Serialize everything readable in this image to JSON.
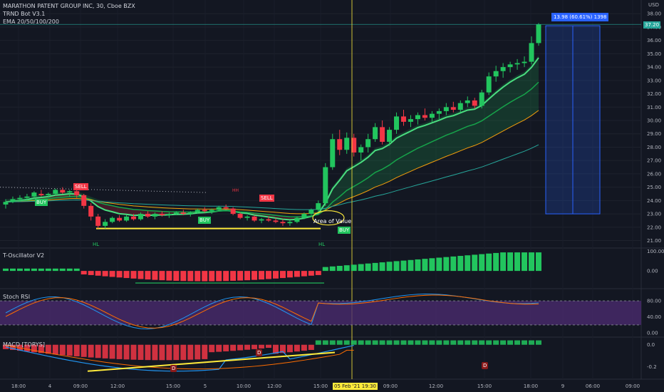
{
  "header": {
    "title": "MARATHON PATENT GROUP INC, 30, Cboe BZX",
    "indicator1": "TRND Bot V3.1",
    "indicator2": "EMA 20/50/100/200",
    "currency": "USD"
  },
  "panes": {
    "osc": "T-Oscillator V2",
    "stoch": "Stoch RSI",
    "macd": "MACD [TORYS]"
  },
  "annotations": {
    "sell1": "SELL",
    "sell2": "SELL",
    "buy1": "BUY",
    "buy2": "BUY",
    "buy3": "BUY",
    "hl1": "HL",
    "hl2": "HL",
    "hh": "HH",
    "area": "Area of Value",
    "d1": "D",
    "d2": "D",
    "d3": "D",
    "measure": "13.98 (60.61%) 1398",
    "price_tag": "37.20",
    "date_tag": "05 Feb '21  19:30"
  },
  "colors": {
    "bull": "#22c55e",
    "bear": "#f23645",
    "bg": "#131722",
    "stoch_band": "#4a2a6e",
    "tag_price": "#26a69a",
    "tag_date": "#ffeb3b",
    "measure": "#2962ff"
  },
  "chart_data": {
    "type": "candlestick",
    "main": {
      "y_ticks": [
        "38.00",
        "37.00",
        "36.00",
        "35.00",
        "34.00",
        "33.00",
        "32.00",
        "31.00",
        "30.00",
        "29.00",
        "28.00",
        "27.00",
        "26.00",
        "25.00",
        "24.00",
        "23.00",
        "22.00",
        "21.00"
      ],
      "ylim": [
        20.6,
        38.6
      ],
      "last_price": 37.2,
      "candles": [
        [
          23.7,
          24.1,
          23.4,
          23.9
        ],
        [
          23.9,
          24.3,
          23.8,
          24.1
        ],
        [
          24.1,
          24.4,
          23.9,
          24.2
        ],
        [
          24.2,
          24.5,
          24.0,
          24.3
        ],
        [
          24.3,
          24.7,
          24.1,
          24.6
        ],
        [
          24.5,
          24.8,
          24.3,
          24.4
        ],
        [
          24.4,
          24.6,
          24.2,
          24.5
        ],
        [
          24.5,
          24.9,
          24.4,
          24.8
        ],
        [
          24.8,
          25.0,
          24.5,
          24.6
        ],
        [
          24.6,
          24.8,
          24.3,
          24.7
        ],
        [
          24.7,
          24.8,
          24.2,
          24.4
        ],
        [
          24.4,
          24.5,
          23.4,
          23.6
        ],
        [
          23.6,
          23.8,
          22.5,
          22.8
        ],
        [
          22.8,
          23.0,
          21.9,
          22.1
        ],
        [
          22.1,
          22.6,
          21.9,
          22.4
        ],
        [
          22.4,
          22.8,
          22.3,
          22.7
        ],
        [
          22.7,
          22.9,
          22.4,
          22.5
        ],
        [
          22.5,
          22.9,
          22.4,
          22.8
        ],
        [
          22.8,
          23.0,
          22.5,
          22.6
        ],
        [
          22.6,
          23.1,
          22.5,
          23.0
        ],
        [
          23.0,
          23.2,
          22.7,
          22.8
        ],
        [
          22.8,
          23.1,
          22.6,
          23.0
        ],
        [
          23.0,
          23.2,
          22.8,
          22.9
        ],
        [
          22.9,
          23.1,
          22.7,
          23.0
        ],
        [
          23.0,
          23.2,
          22.9,
          23.1
        ],
        [
          23.1,
          23.3,
          22.9,
          23.0
        ],
        [
          23.0,
          23.2,
          22.8,
          23.1
        ],
        [
          23.1,
          23.4,
          23.0,
          23.3
        ],
        [
          23.3,
          23.5,
          23.1,
          23.2
        ],
        [
          23.2,
          23.4,
          23.0,
          23.3
        ],
        [
          23.3,
          23.6,
          23.2,
          23.5
        ],
        [
          23.5,
          23.7,
          23.3,
          23.4
        ],
        [
          23.4,
          23.5,
          22.9,
          23.0
        ],
        [
          23.0,
          23.1,
          22.6,
          22.7
        ],
        [
          22.7,
          22.9,
          22.5,
          22.8
        ],
        [
          22.8,
          22.9,
          22.4,
          22.5
        ],
        [
          22.5,
          22.7,
          22.3,
          22.6
        ],
        [
          22.6,
          22.8,
          22.4,
          22.5
        ],
        [
          22.5,
          22.7,
          22.3,
          22.4
        ],
        [
          22.4,
          22.6,
          22.1,
          22.3
        ],
        [
          22.3,
          22.5,
          22.1,
          22.4
        ],
        [
          22.4,
          22.8,
          22.3,
          22.7
        ],
        [
          22.7,
          23.1,
          22.6,
          23.0
        ],
        [
          23.0,
          23.4,
          22.9,
          23.3
        ],
        [
          23.3,
          24.0,
          23.1,
          23.8
        ],
        [
          23.8,
          26.8,
          23.6,
          26.5
        ],
        [
          26.5,
          29.0,
          26.3,
          28.6
        ],
        [
          28.6,
          29.3,
          27.4,
          27.8
        ],
        [
          27.8,
          29.1,
          27.5,
          28.7
        ],
        [
          28.7,
          29.0,
          27.3,
          27.6
        ],
        [
          27.6,
          28.2,
          27.0,
          28.0
        ],
        [
          28.0,
          29.0,
          27.6,
          28.6
        ],
        [
          28.6,
          29.8,
          28.4,
          29.5
        ],
        [
          29.5,
          30.0,
          28.2,
          28.4
        ],
        [
          28.4,
          29.5,
          28.1,
          29.3
        ],
        [
          29.3,
          30.6,
          29.0,
          30.3
        ],
        [
          30.3,
          30.8,
          29.6,
          29.9
        ],
        [
          29.9,
          30.4,
          29.5,
          30.1
        ],
        [
          30.1,
          30.6,
          29.7,
          30.4
        ],
        [
          30.4,
          30.9,
          30.0,
          30.2
        ],
        [
          30.2,
          30.7,
          29.9,
          30.5
        ],
        [
          30.5,
          30.9,
          30.1,
          30.7
        ],
        [
          30.7,
          31.3,
          30.4,
          31.0
        ],
        [
          31.0,
          31.4,
          30.6,
          30.8
        ],
        [
          30.8,
          31.5,
          30.6,
          31.3
        ],
        [
          31.3,
          31.8,
          31.0,
          31.5
        ],
        [
          31.5,
          31.7,
          30.9,
          31.1
        ],
        [
          31.1,
          32.3,
          30.9,
          32.1
        ],
        [
          32.1,
          33.6,
          31.9,
          33.3
        ],
        [
          33.3,
          34.1,
          32.9,
          33.7
        ],
        [
          33.7,
          34.3,
          33.2,
          34.0
        ],
        [
          34.0,
          34.4,
          33.6,
          34.2
        ],
        [
          34.2,
          34.6,
          33.8,
          34.3
        ],
        [
          34.3,
          34.8,
          34.0,
          34.4
        ],
        [
          34.4,
          36.3,
          34.2,
          35.8
        ],
        [
          35.8,
          37.3,
          35.6,
          37.2
        ]
      ]
    },
    "osc": {
      "y_ticks": [
        "100.00",
        "0.00"
      ],
      "ylim": [
        -80,
        110
      ]
    },
    "stoch": {
      "y_ticks": [
        "80.00",
        "40.00",
        "0.00"
      ],
      "ylim": [
        -5,
        105
      ]
    },
    "macd": {
      "y_ticks": [
        "0.0",
        "-0.2"
      ],
      "ylim": [
        -0.3,
        0.05
      ]
    },
    "x_ticks": [
      "18:00",
      "4",
      "09:00",
      "12:00",
      "15:00",
      "5",
      "10:00",
      "12:00",
      "15:00",
      "09:00",
      "12:00",
      "15:00",
      "18:00",
      "9",
      "06:00",
      "09:00"
    ]
  }
}
